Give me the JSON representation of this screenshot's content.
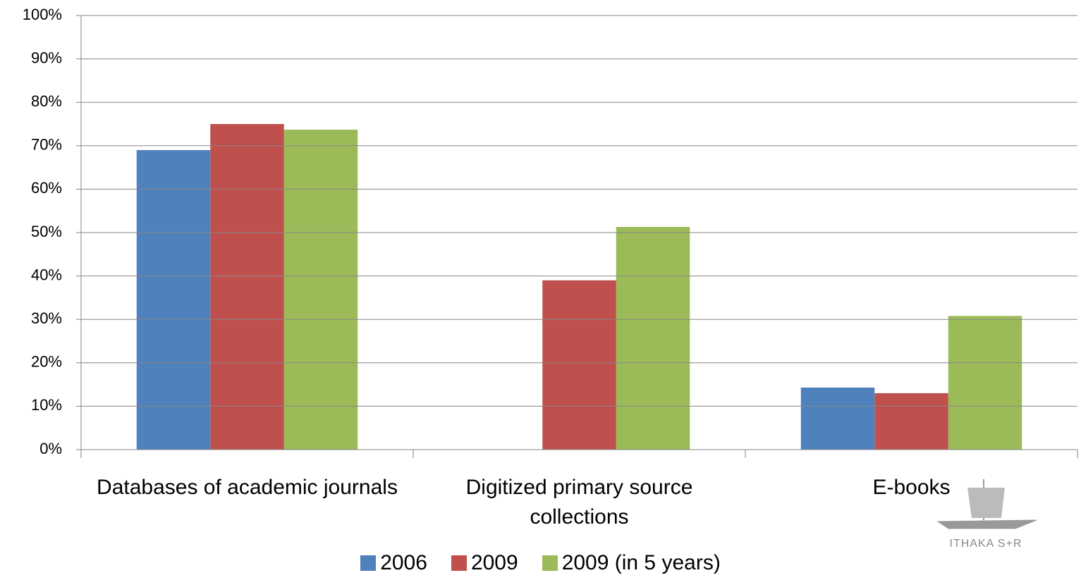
{
  "chart_data": {
    "type": "bar",
    "categories": [
      "Databases of academic journals",
      "Digitized primary source collections",
      "E-books"
    ],
    "series": [
      {
        "name": "2006",
        "color": "#4f81bd",
        "values": [
          69,
          null,
          14.3
        ]
      },
      {
        "name": "2009",
        "color": "#c0504d",
        "values": [
          75,
          39,
          13
        ]
      },
      {
        "name": "2009 (in 5 years)",
        "color": "#9bbb59",
        "values": [
          73.7,
          51.3,
          30.8
        ]
      }
    ],
    "ylim": [
      0,
      100
    ],
    "yticks": [
      {
        "value": 0,
        "label": "0%"
      },
      {
        "value": 10,
        "label": "10%"
      },
      {
        "value": 20,
        "label": "20%"
      },
      {
        "value": 30,
        "label": "30%"
      },
      {
        "value": 40,
        "label": "40%"
      },
      {
        "value": 50,
        "label": "50%"
      },
      {
        "value": 60,
        "label": "60%"
      },
      {
        "value": 70,
        "label": "70%"
      },
      {
        "value": 80,
        "label": "80%"
      },
      {
        "value": 90,
        "label": "90%"
      },
      {
        "value": 100,
        "label": "100%"
      }
    ],
    "grid": true,
    "legend": "bottom",
    "logo_text": "ITHAKA S+R"
  }
}
